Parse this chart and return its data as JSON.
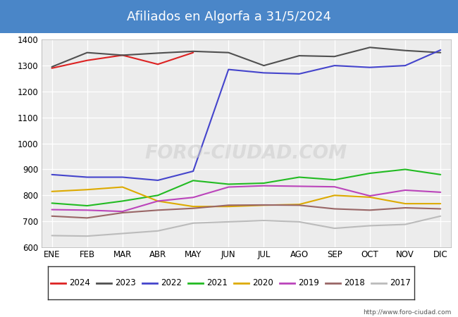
{
  "title": "Afiliados en Algorfa a 31/5/2024",
  "title_bg_color": "#4a86c8",
  "title_text_color": "white",
  "title_fontsize": 13,
  "ylim": [
    600,
    1400
  ],
  "yticks": [
    600,
    700,
    800,
    900,
    1000,
    1100,
    1200,
    1300,
    1400
  ],
  "months": [
    "ENE",
    "FEB",
    "MAR",
    "ABR",
    "MAY",
    "JUN",
    "JUL",
    "AGO",
    "SEP",
    "OCT",
    "NOV",
    "DIC"
  ],
  "fig_bg_color": "#4a86c8",
  "plot_area_bg": "#ffffff",
  "inner_plot_bg": "#ececec",
  "watermark": "FORO-CIUDAD.COM",
  "url": "http://www.foro-ciudad.com",
  "series": [
    {
      "label": "2024",
      "color": "#dd2222",
      "linewidth": 1.5,
      "values": [
        1290,
        1320,
        1340,
        1305,
        1350,
        null,
        null,
        null,
        null,
        null,
        null,
        null
      ]
    },
    {
      "label": "2023",
      "color": "#505050",
      "linewidth": 1.5,
      "values": [
        1295,
        1350,
        1340,
        1348,
        1355,
        1350,
        1300,
        1338,
        1335,
        1370,
        1358,
        1350
      ]
    },
    {
      "label": "2022",
      "color": "#4444cc",
      "linewidth": 1.5,
      "values": [
        880,
        870,
        870,
        858,
        893,
        1285,
        1272,
        1268,
        1300,
        1293,
        1300,
        1360
      ]
    },
    {
      "label": "2021",
      "color": "#22bb22",
      "linewidth": 1.5,
      "values": [
        770,
        760,
        778,
        800,
        857,
        843,
        847,
        870,
        860,
        885,
        900,
        880
      ]
    },
    {
      "label": "2020",
      "color": "#ddaa00",
      "linewidth": 1.5,
      "values": [
        815,
        822,
        832,
        778,
        757,
        757,
        762,
        765,
        800,
        793,
        768,
        768
      ]
    },
    {
      "label": "2019",
      "color": "#bb44bb",
      "linewidth": 1.5,
      "values": [
        745,
        743,
        738,
        778,
        792,
        832,
        837,
        835,
        833,
        798,
        820,
        812
      ]
    },
    {
      "label": "2018",
      "color": "#996666",
      "linewidth": 1.5,
      "values": [
        720,
        713,
        733,
        743,
        750,
        762,
        763,
        762,
        748,
        743,
        752,
        748
      ]
    },
    {
      "label": "2017",
      "color": "#bbbbbb",
      "linewidth": 1.5,
      "values": [
        645,
        643,
        653,
        663,
        693,
        698,
        703,
        698,
        673,
        683,
        688,
        720
      ]
    }
  ]
}
